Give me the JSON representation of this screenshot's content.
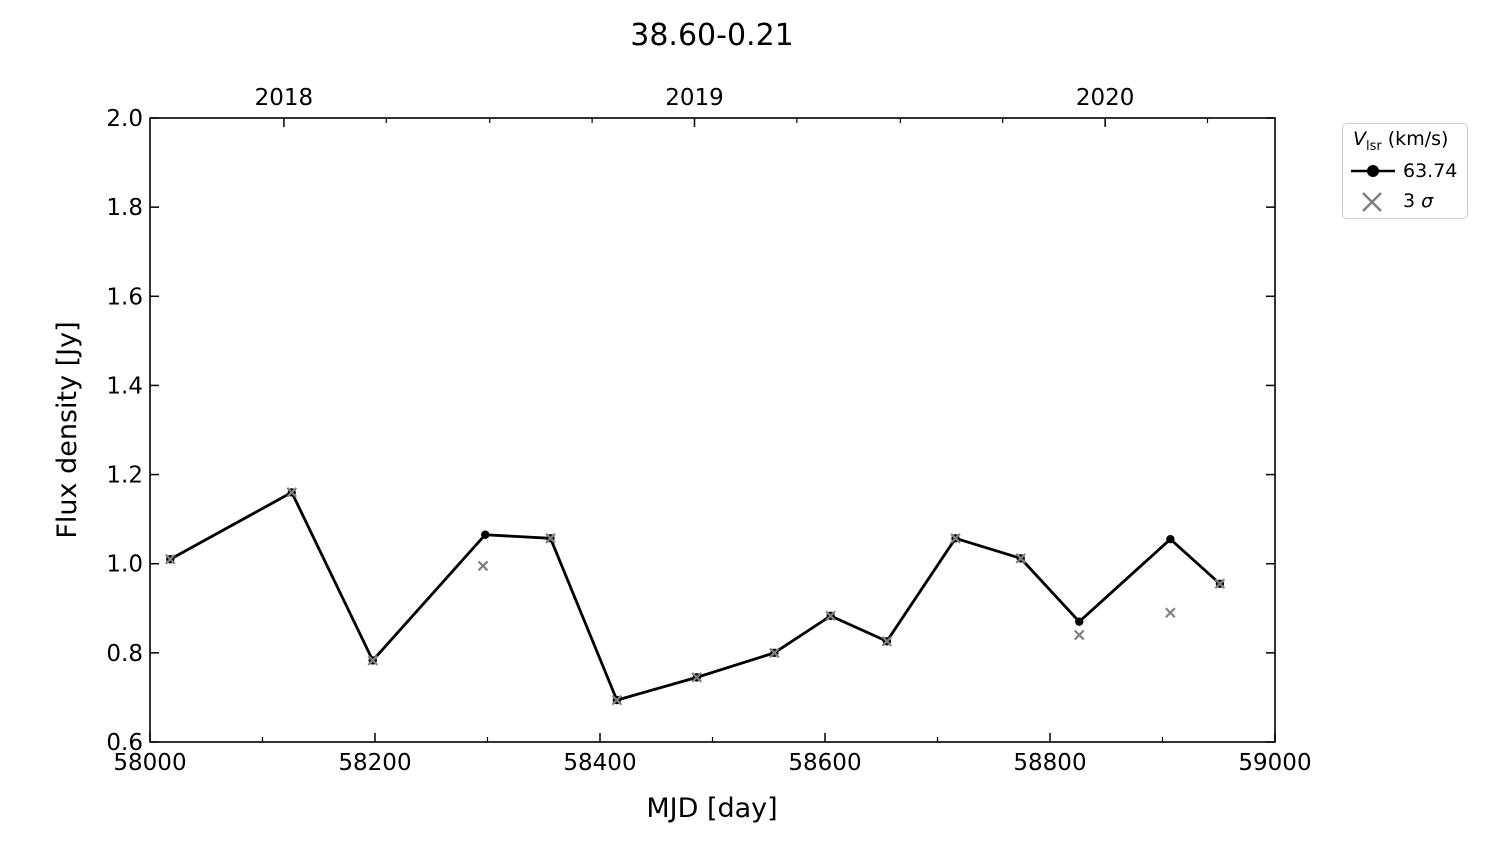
{
  "chart_data": {
    "type": "line",
    "title": "38.60-0.21",
    "xlabel": "MJD [day]",
    "ylabel": "Flux density [Jy]",
    "xlim": [
      58000,
      59000
    ],
    "ylim": [
      0.6,
      2.0
    ],
    "xticks": [
      58000,
      58200,
      58400,
      58600,
      58800,
      59000
    ],
    "yticks": [
      "0.6",
      "0.8",
      "1.0",
      "1.2",
      "1.4",
      "1.6",
      "1.8",
      "2.0"
    ],
    "top_axis": {
      "ticks": [
        {
          "label": "2018",
          "mjd": 58119
        },
        {
          "label": "2019",
          "mjd": 58484
        },
        {
          "label": "2020",
          "mjd": 58849
        }
      ]
    },
    "grid": false,
    "legend": {
      "placement": "outside-right",
      "title_symbol": "V",
      "title_sub": "lsr",
      "title_unit": " (km/s)",
      "entries": [
        {
          "label": "63.74",
          "marker": "line-circle",
          "color": "#000000"
        },
        {
          "label_prefix": "3 ",
          "label_symbol": "σ",
          "marker": "x",
          "color": "#808080"
        }
      ]
    },
    "series": [
      {
        "name": "63.74",
        "color": "#000000",
        "x": [
          58018,
          58126,
          58198,
          58298,
          58356,
          58415,
          58486,
          58555,
          58605,
          58655,
          58716,
          58774,
          58826,
          58907,
          58951
        ],
        "y": [
          1.01,
          1.16,
          0.783,
          1.065,
          1.057,
          0.694,
          0.745,
          0.8,
          0.883,
          0.826,
          1.057,
          1.012,
          0.87,
          1.055,
          0.955
        ]
      },
      {
        "name": "3 σ",
        "color": "#808080",
        "marker": "x",
        "x": [
          58018,
          58126,
          58198,
          58296,
          58356,
          58415,
          58486,
          58555,
          58605,
          58655,
          58716,
          58774,
          58826,
          58907,
          58951
        ],
        "y": [
          1.01,
          1.16,
          0.783,
          0.995,
          1.057,
          0.694,
          0.745,
          0.8,
          0.883,
          0.826,
          1.057,
          1.012,
          0.84,
          0.89,
          0.955
        ]
      }
    ]
  }
}
